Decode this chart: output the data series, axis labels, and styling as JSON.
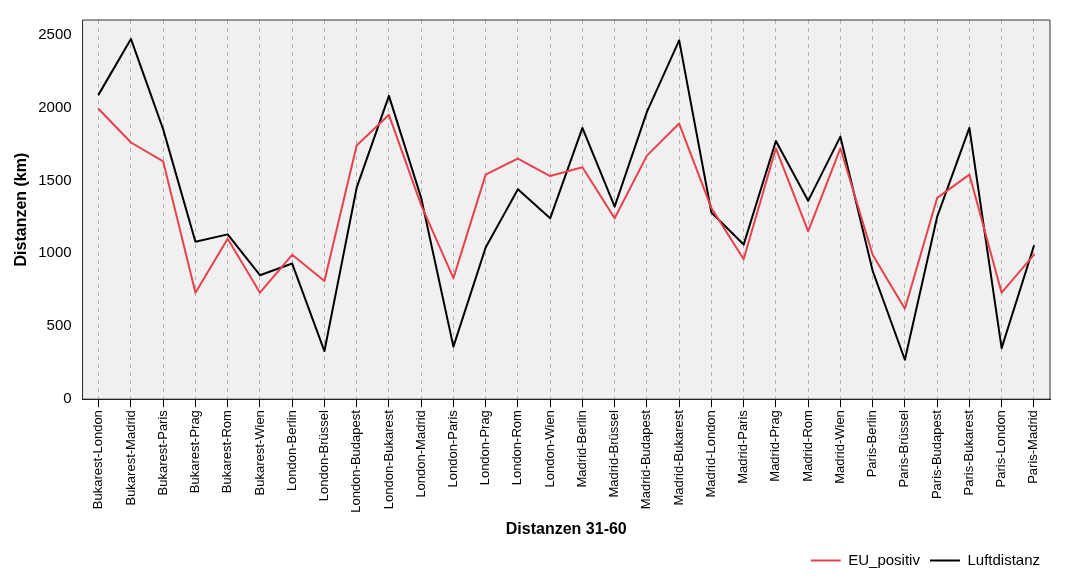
{
  "chart_data": {
    "type": "line",
    "xlabel": "Distanzen 31-60",
    "ylabel": "Distanzen (km)",
    "categories": [
      "Bukarest-London",
      "Bukarest-Madrid",
      "Bukarest-Paris",
      "Bukarest-Prag",
      "Bukarest-Rom",
      "Bukarest-Wien",
      "London-Berlin",
      "London-Brüssel",
      "London-Budapest",
      "London-Bukarest",
      "London-Madrid",
      "London-Paris",
      "London-Prag",
      "London-Rom",
      "London-Wien",
      "Madrid-Berlin",
      "Madrid-Brüssel",
      "Madrid-Budapest",
      "Madrid-Bukarest",
      "Madrid-London",
      "Madrid-Paris",
      "Madrid-Prag",
      "Madrid-Rom",
      "Madrid-Wien",
      "Paris-Berlin",
      "Paris-Brüssel",
      "Paris-Budapest",
      "Paris-Bukarest",
      "Paris-London",
      "Paris-Madrid"
    ],
    "series": [
      {
        "name": "EU_positiv",
        "color": "#e8414e",
        "values": [
          1990,
          1760,
          1630,
          730,
          1100,
          730,
          990,
          810,
          1740,
          1950,
          1330,
          830,
          1540,
          1650,
          1530,
          1590,
          1240,
          1670,
          1890,
          1310,
          960,
          1720,
          1150,
          1720,
          990,
          620,
          1380,
          1540,
          730,
          990
        ]
      },
      {
        "name": "Luftdistanz",
        "color": "#000000",
        "values": [
          2090,
          2470,
          1850,
          1080,
          1130,
          850,
          930,
          330,
          1450,
          2080,
          1380,
          360,
          1040,
          1440,
          1240,
          1860,
          1320,
          1970,
          2460,
          1280,
          1060,
          1770,
          1360,
          1800,
          880,
          270,
          1250,
          1860,
          350,
          1050
        ]
      }
    ],
    "ylim": [
      0,
      2600
    ],
    "yticks": [
      0,
      500,
      1000,
      1500,
      2000,
      2500
    ],
    "grid": "x",
    "legend": "bottom right",
    "marker": "none",
    "line_style": "solid"
  }
}
